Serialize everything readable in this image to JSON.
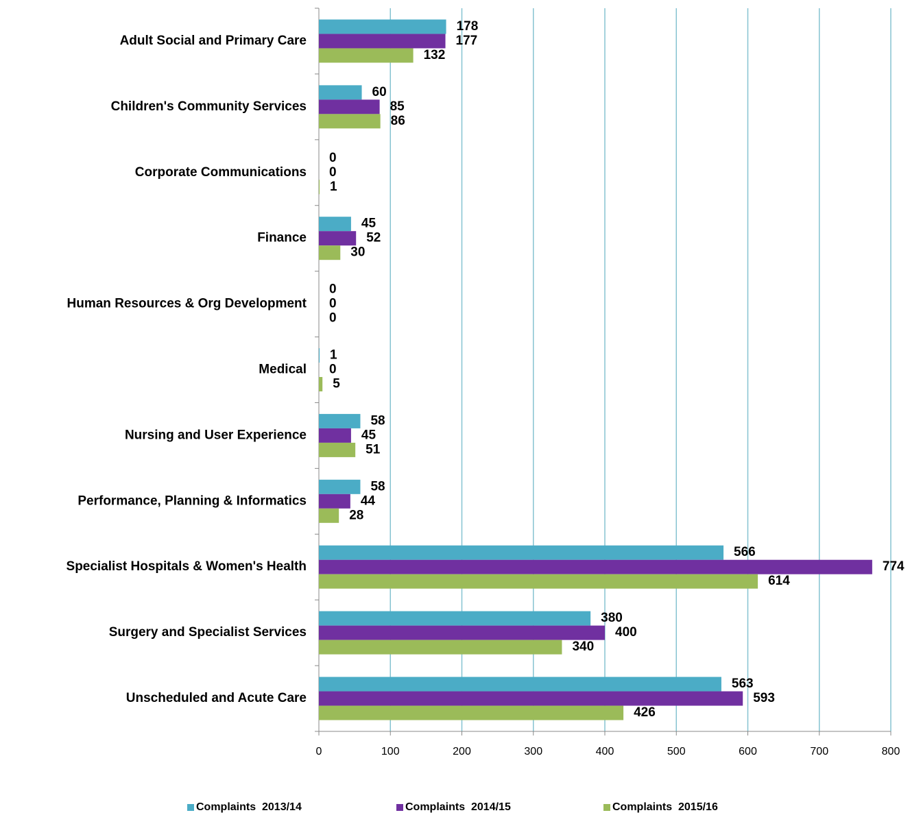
{
  "chart_data": {
    "type": "hbar",
    "categories": [
      "Adult Social and Primary Care",
      "Children's Community Services",
      "Corporate Communications",
      "Finance",
      "Human Resources & Org Development",
      "Medical",
      "Nursing and User Experience",
      "Performance, Planning & Informatics",
      "Specialist Hospitals & Women's Health",
      "Surgery and Specialist Services",
      "Unscheduled and Acute Care"
    ],
    "series": [
      {
        "name": "Complaints  2013/14",
        "color": "#4bacc6",
        "values": [
          178,
          60,
          0,
          45,
          0,
          1,
          58,
          58,
          566,
          380,
          563
        ]
      },
      {
        "name": "Complaints  2014/15",
        "color": "#7030a0",
        "values": [
          177,
          85,
          0,
          52,
          0,
          0,
          45,
          44,
          774,
          400,
          593
        ]
      },
      {
        "name": "Complaints  2015/16",
        "color": "#9bbb59",
        "values": [
          132,
          86,
          1,
          30,
          0,
          5,
          51,
          28,
          614,
          340,
          426
        ]
      }
    ],
    "xlim": [
      0,
      800
    ],
    "xticks": [
      0,
      100,
      200,
      300,
      400,
      500,
      600,
      700,
      800
    ],
    "grid": true,
    "legend": "bottom"
  }
}
